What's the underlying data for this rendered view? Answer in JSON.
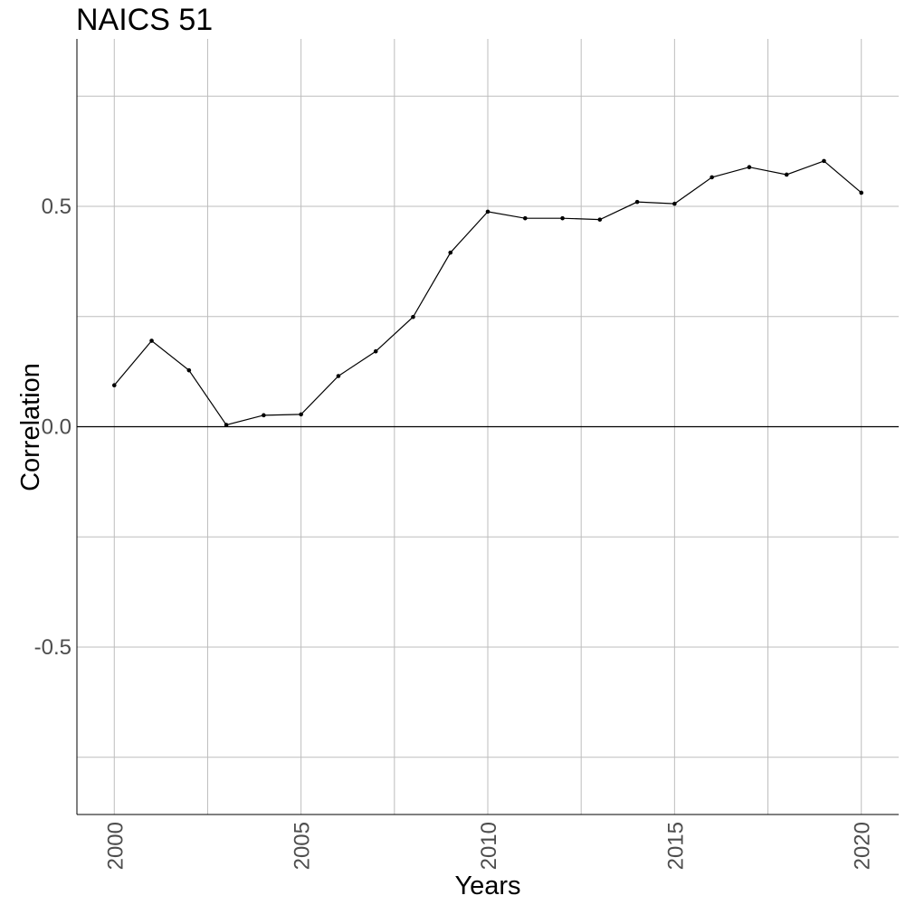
{
  "chart_data": {
    "type": "line",
    "title": "NAICS 51",
    "xlabel": "Years",
    "ylabel": "Correlation",
    "xlim": [
      1999,
      2021
    ],
    "ylim": [
      -0.88,
      0.88
    ],
    "x_ticks": [
      2000,
      2005,
      2010,
      2015,
      2020
    ],
    "x_tick_labels": [
      "2000",
      "2005",
      "2010",
      "2015",
      "2020"
    ],
    "x_minor_ticks": [
      2002.5,
      2007.5,
      2012.5,
      2017.5
    ],
    "y_ticks": [
      -0.5,
      0.0,
      0.5
    ],
    "y_tick_labels": [
      "-0.5",
      "0.0",
      "0.5"
    ],
    "y_minor_ticks": [
      -0.75,
      -0.25,
      0.25,
      0.75
    ],
    "grid": true,
    "reference_line": 0,
    "series": [
      {
        "x": [
          2000,
          2001,
          2002,
          2003,
          2004,
          2005,
          2006,
          2007,
          2008,
          2009,
          2010,
          2011,
          2012,
          2013,
          2014,
          2015,
          2016,
          2017,
          2018,
          2019,
          2020
        ],
        "values": [
          0.094,
          0.195,
          0.128,
          0.004,
          0.026,
          0.028,
          0.115,
          0.171,
          0.249,
          0.395,
          0.488,
          0.473,
          0.473,
          0.47,
          0.51,
          0.506,
          0.566,
          0.589,
          0.572,
          0.603,
          0.531
        ]
      }
    ]
  }
}
